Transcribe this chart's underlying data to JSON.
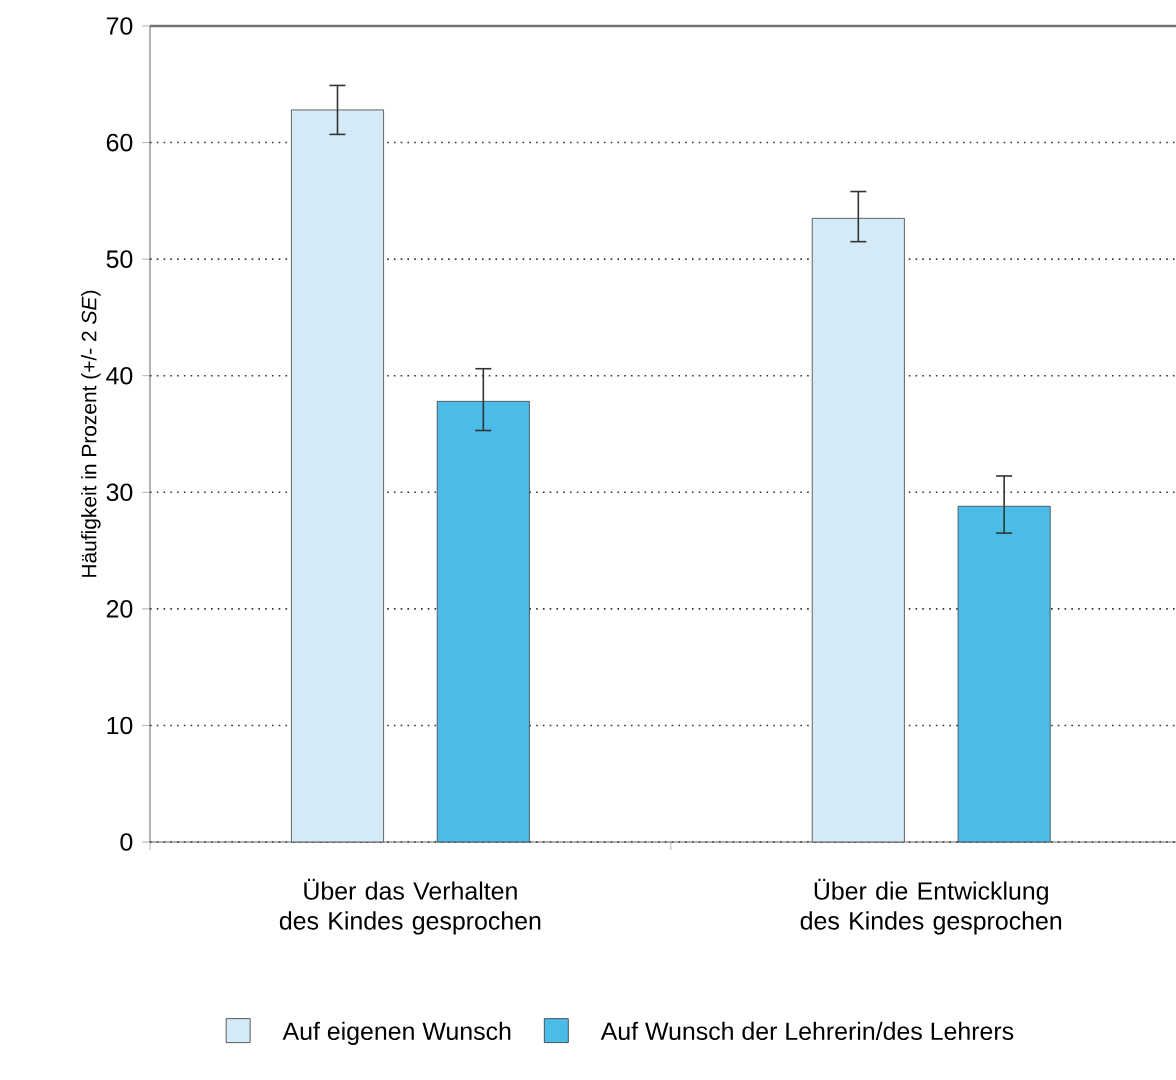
{
  "chart_data": {
    "type": "bar",
    "ylabel": "Häufigkeit in Prozent (+/- 2 *SE*)",
    "categories": [
      "Über das Verhalten des Kindes gesprochen",
      "Über die Entwicklung des Kindes gesprochen"
    ],
    "series": [
      {
        "name": "Auf eigenen Wunsch",
        "color": "#d4eaf7",
        "values": [
          62.8,
          53.5
        ],
        "errors": [
          [
            60.7,
            64.9
          ],
          [
            51.5,
            55.8
          ]
        ]
      },
      {
        "name": "Auf Wunsch der Lehrerin/des Lehrers",
        "color": "#4bbbe8",
        "values": [
          37.8,
          28.8
        ],
        "errors": [
          [
            35.3,
            40.6
          ],
          [
            26.5,
            31.4
          ]
        ]
      }
    ],
    "ylim": [
      0,
      70
    ],
    "yticks": [
      0,
      10,
      20,
      30,
      40,
      50,
      60,
      70
    ],
    "grid": "y",
    "legend": "bottom"
  }
}
